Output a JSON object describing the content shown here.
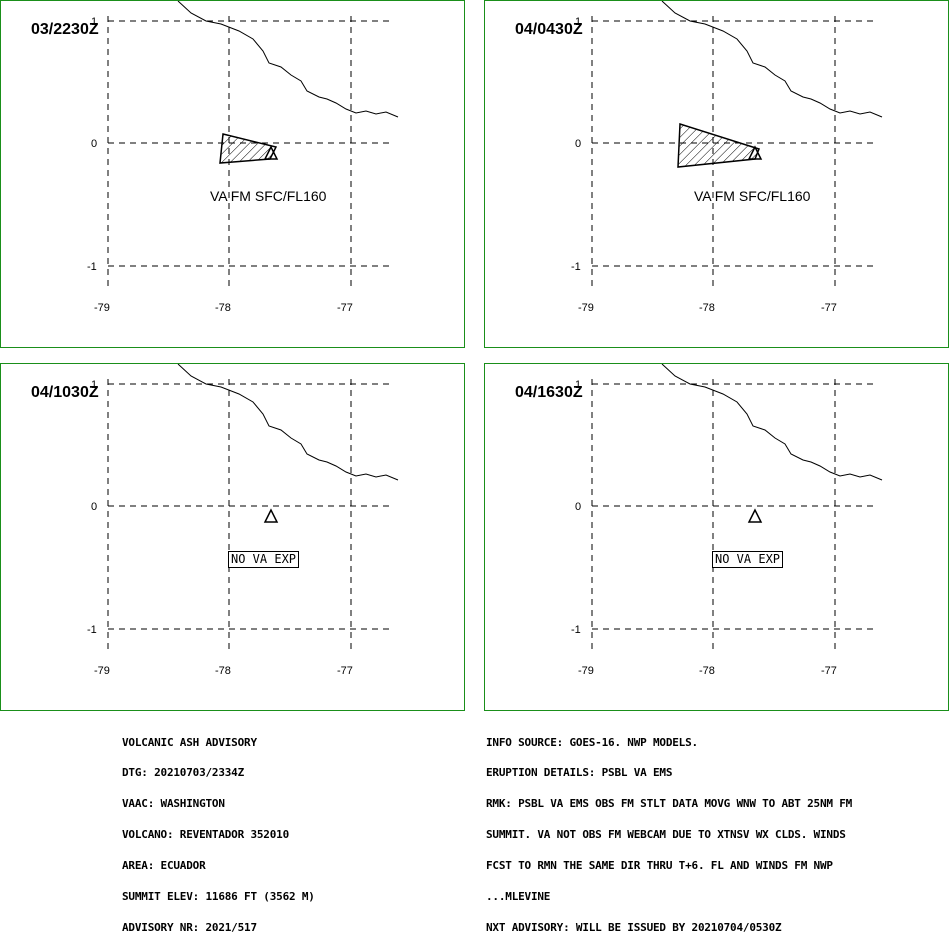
{
  "panels": [
    {
      "timestamp": "03/2230Z",
      "label": "VA FM SFC/FL160",
      "has_ash": true
    },
    {
      "timestamp": "04/0430Z",
      "label": "VA FM SFC/FL160",
      "has_ash": true
    },
    {
      "timestamp": "04/1030Z",
      "label": "NO VA EXP",
      "has_ash": false
    },
    {
      "timestamp": "04/1630Z",
      "label": "NO VA EXP",
      "has_ash": false
    }
  ],
  "axes": {
    "lat_labels": [
      "1",
      "0",
      "-1"
    ],
    "lon_labels": [
      "-79",
      "-78",
      "-77"
    ]
  },
  "advisory_left": [
    "VOLCANIC ASH ADVISORY",
    "DTG: 20210703/2334Z",
    "VAAC: WASHINGTON",
    "VOLCANO: REVENTADOR 352010",
    "AREA: ECUADOR",
    "SUMMIT ELEV: 11686 FT (3562 M)",
    "ADVISORY NR: 2021/517"
  ],
  "advisory_right": [
    "INFO SOURCE: GOES-16. NWP MODELS.",
    "ERUPTION DETAILS: PSBL VA EMS",
    "RMK: PSBL VA EMS OBS FM STLT DATA MOVG WNW TO ABT 25NM FM",
    "SUMMIT. VA NOT OBS FM WEBCAM DUE TO XTNSV WX CLDS. WINDS",
    "FCST TO RMN THE SAME DIR THRU T+6. FL AND WINDS FM NWP",
    "...MLEVINE",
    "NXT ADVISORY: WILL BE ISSUED BY 20210704/0530Z"
  ]
}
